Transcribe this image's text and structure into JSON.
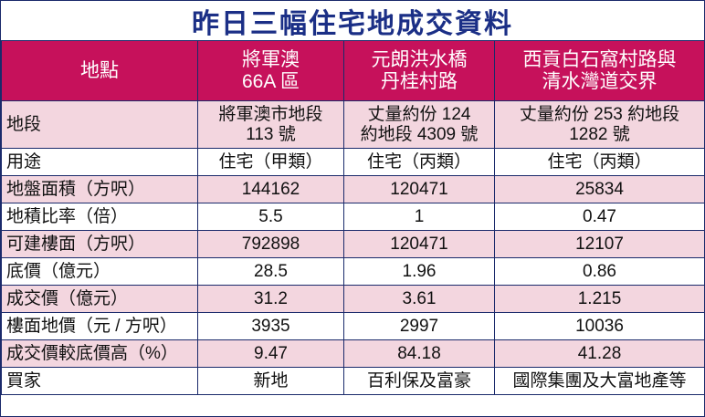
{
  "title": "昨日三幅住宅地成交資料",
  "colors": {
    "header_bg": "#c6115b",
    "title_text": "#1b2f86",
    "stripe_bg": "#f3d6df",
    "border": "#1a2a6b"
  },
  "header": {
    "label": "地點",
    "col1": [
      "將軍澳",
      "66A 區"
    ],
    "col2": [
      "元朗洪水橋",
      "丹桂村路"
    ],
    "col3": [
      "西貢白石窩村路與",
      "清水灣道交界"
    ]
  },
  "rows": [
    {
      "label": "地段",
      "values": [
        [
          "將軍澳市地段",
          "113 號"
        ],
        [
          "丈量約份 124",
          "約地段 4309 號"
        ],
        [
          "丈量約份 253 約地段",
          "1282 號"
        ]
      ]
    },
    {
      "label": "用途",
      "values": [
        "住宅（甲類）",
        "住宅（丙類）",
        "住宅（丙類）"
      ]
    },
    {
      "label": "地盤面積（方呎）",
      "values": [
        "144162",
        "120471",
        "25834"
      ]
    },
    {
      "label": "地積比率（倍）",
      "values": [
        "5.5",
        "1",
        "0.47"
      ]
    },
    {
      "label": "可建樓面（方呎）",
      "values": [
        "792898",
        "120471",
        "12107"
      ]
    },
    {
      "label": "底價（億元）",
      "values": [
        "28.5",
        "1.96",
        "0.86"
      ]
    },
    {
      "label": "成交價（億元）",
      "values": [
        "31.2",
        "3.61",
        "1.215"
      ]
    },
    {
      "label": "樓面地價（元 / 方呎）",
      "values": [
        "3935",
        "2997",
        "10036"
      ]
    },
    {
      "label": "成交價較底價高（%）",
      "values": [
        "9.47",
        "84.18",
        "41.28"
      ]
    },
    {
      "label": "買家",
      "values": [
        "新地",
        "百利保及富豪",
        "國際集團及大富地產等"
      ]
    }
  ]
}
